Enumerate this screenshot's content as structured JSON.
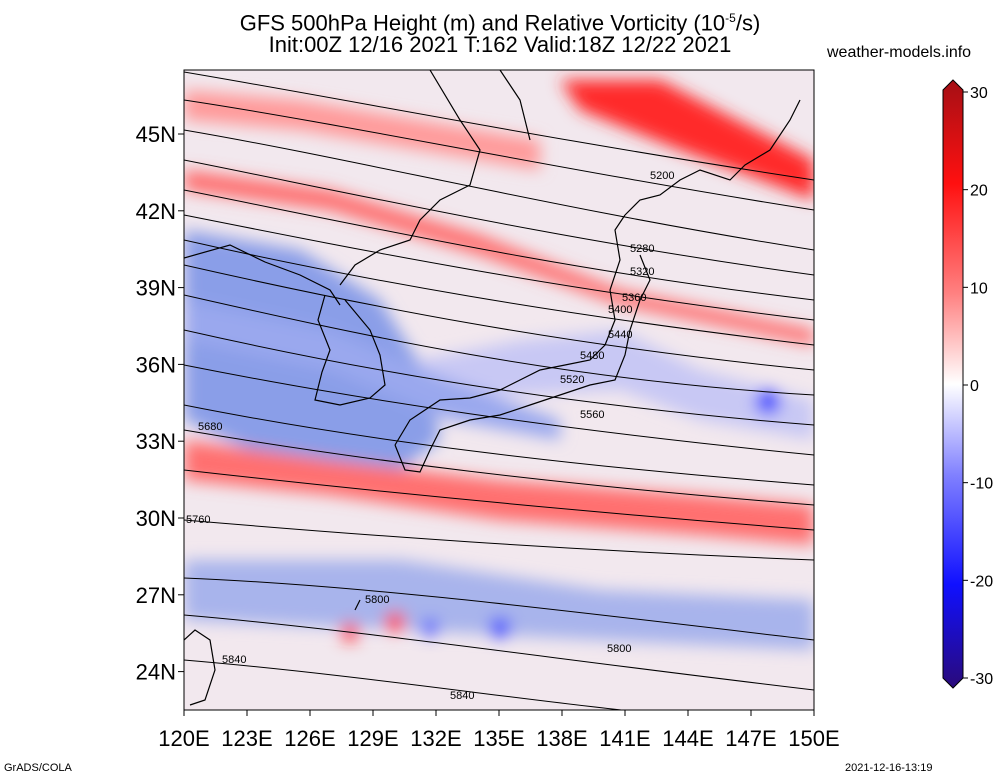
{
  "title": {
    "line1": "GFS 500hPa Height (m) and Relative Vorticity (10",
    "line1_sup": "-5",
    "line1_end": "/s)",
    "line2": "Init:00Z 12/16 2021 T:162 Valid:18Z 12/22 2021"
  },
  "site": "weather-models.info",
  "footer": {
    "left": "GrADS/COLA",
    "right": "2021-12-16-13:19"
  },
  "map": {
    "lon_range": [
      120,
      150
    ],
    "lat_range": [
      22.5,
      47.5
    ],
    "lon_ticks": [
      "120E",
      "123E",
      "126E",
      "129E",
      "132E",
      "135E",
      "138E",
      "141E",
      "144E",
      "147E",
      "150E"
    ],
    "lat_ticks": [
      "24N",
      "27N",
      "30N",
      "33N",
      "36N",
      "39N",
      "42N",
      "45N"
    ],
    "contour_labels": [
      "5200",
      "5280",
      "5320",
      "5360",
      "5400",
      "5440",
      "5480",
      "5520",
      "5560",
      "5680",
      "5760",
      "5800",
      "5800",
      "5840",
      "5840"
    ]
  },
  "colorbar": {
    "labels": [
      "30",
      "20",
      "10",
      "0",
      "-10",
      "-20",
      "-30"
    ],
    "colors": {
      "max": "#a50f15",
      "pos": "#ff2020",
      "zero": "#ffffff",
      "neg": "#2020ff",
      "min": "#2a0a7a"
    }
  }
}
